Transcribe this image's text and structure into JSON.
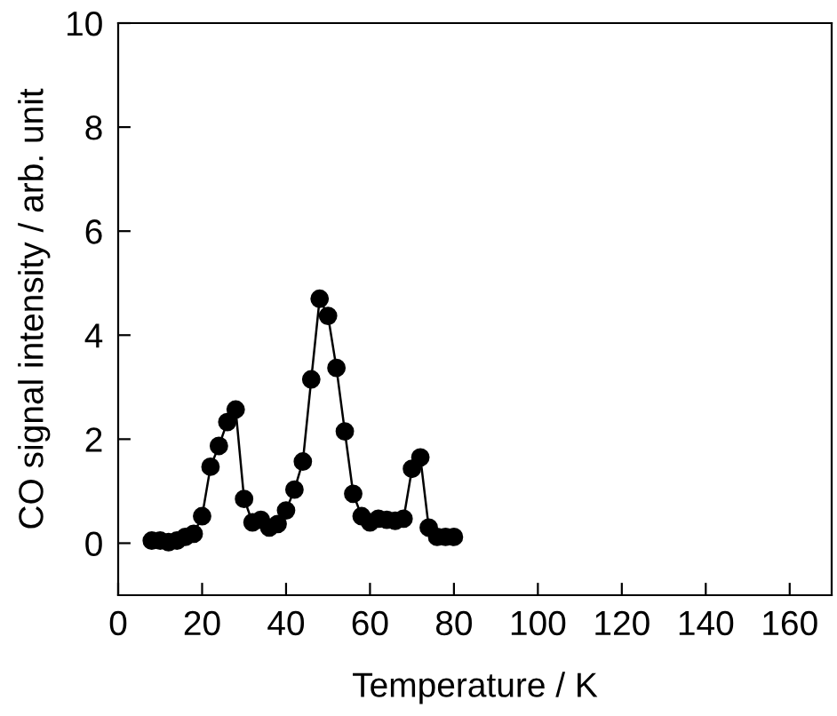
{
  "chart_data": {
    "type": "line",
    "xlabel": "Temperature / K",
    "ylabel": "CO signal intensity / arb. unit",
    "x": [
      8,
      10,
      12,
      14,
      16,
      18,
      20,
      22,
      24,
      26,
      28,
      30,
      32,
      34,
      36,
      38,
      40,
      42,
      44,
      46,
      48,
      50,
      52,
      54,
      56,
      58,
      60,
      62,
      64,
      66,
      68,
      70,
      72,
      74,
      76,
      78,
      80
    ],
    "series": [
      {
        "color": "#000000",
        "values": [
          0.05,
          0.05,
          0.02,
          0.05,
          0.12,
          0.18,
          0.52,
          1.47,
          1.87,
          2.33,
          2.57,
          0.85,
          0.4,
          0.45,
          0.3,
          0.37,
          0.63,
          1.03,
          1.57,
          3.15,
          4.7,
          4.37,
          3.37,
          2.15,
          0.95,
          0.52,
          0.4,
          0.47,
          0.45,
          0.43,
          0.47,
          1.43,
          1.65,
          0.3,
          0.12,
          0.12,
          0.12
        ]
      }
    ],
    "xlim": [
      0,
      170
    ],
    "xticks": [
      0,
      20,
      40,
      60,
      80,
      100,
      120,
      140,
      160
    ],
    "ylim": [
      -1,
      10
    ],
    "yticks": [
      0,
      2,
      4,
      6,
      8,
      10
    ],
    "marker": "circle",
    "line_style": "solid",
    "grid": false,
    "legend": false
  }
}
